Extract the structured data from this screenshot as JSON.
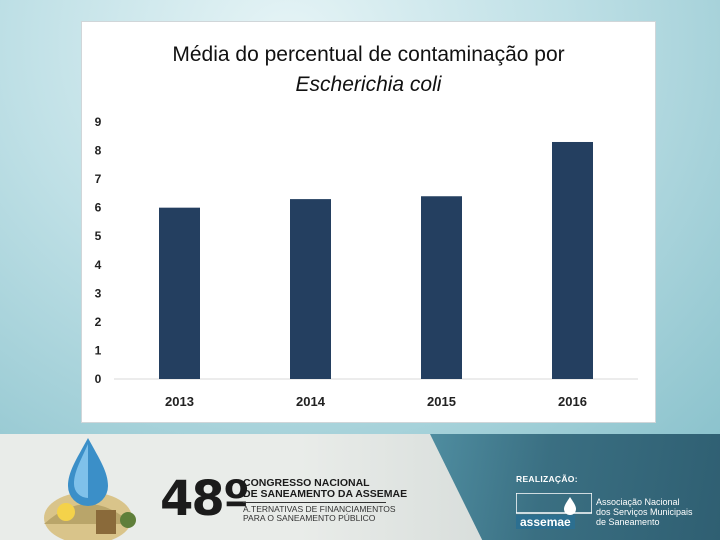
{
  "chart_data": {
    "type": "bar",
    "title_line1": "Média do percentual de contaminação por",
    "title_line2": "Escherichia coli",
    "categories": [
      "2013",
      "2014",
      "2015",
      "2016"
    ],
    "values": [
      6.0,
      6.3,
      6.4,
      8.3
    ],
    "y_ticks": [
      "0",
      "1",
      "2",
      "3",
      "4",
      "5",
      "6",
      "7",
      "8",
      "9"
    ],
    "ylim": [
      0,
      9
    ],
    "bar_color": "#243f60",
    "grid": false
  },
  "footer": {
    "event_number": "48º",
    "event_title": "CONGRESSO NACIONAL\nDE SANEAMENTO DA ASSEMAE",
    "event_subtitle": "A.TERNATIVAS DE FINANCIAMENTOS\nPARA O SANEAMENTO PÚBLICO",
    "realizacao": "REALIZAÇÃO:",
    "assemae": "assemae",
    "assemae_org": "Associação Nacional\ndos Serviços Municipais\nde Saneamento"
  }
}
